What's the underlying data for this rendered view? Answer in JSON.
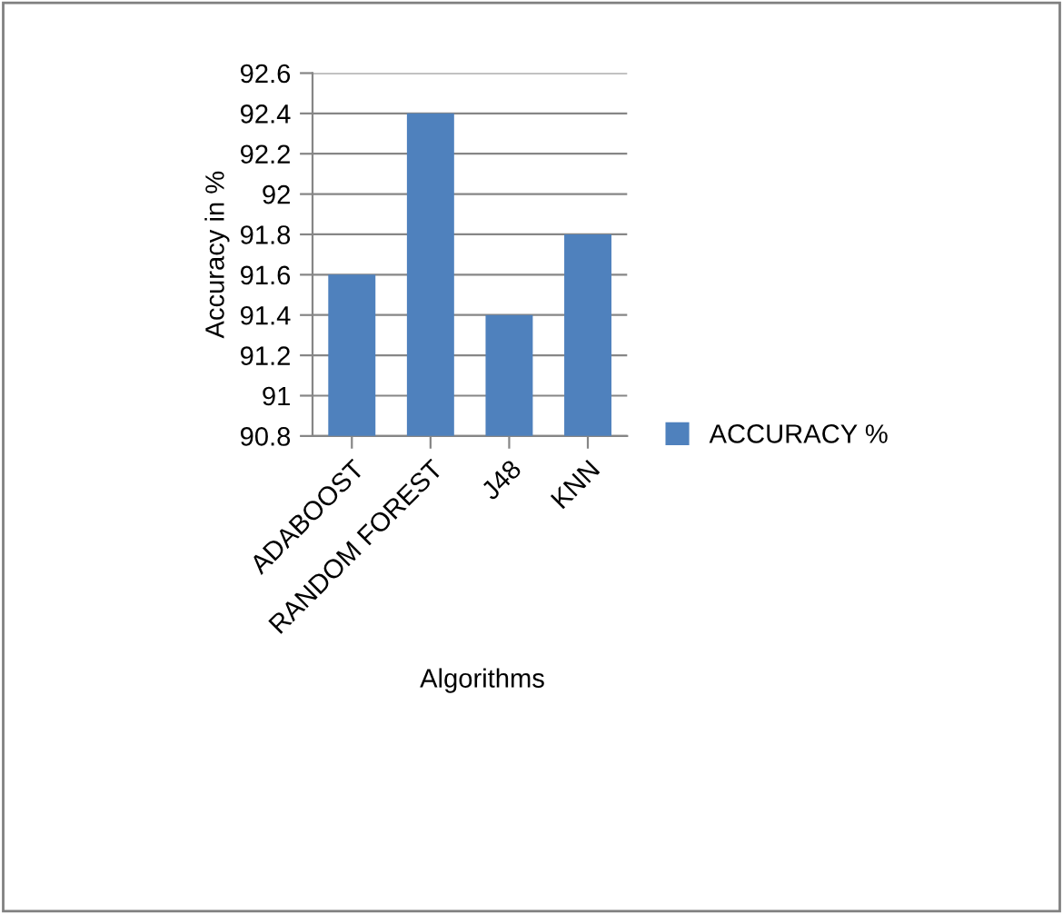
{
  "chart_data": {
    "type": "bar",
    "xlabel": "Algorithms",
    "ylabel": "Accuracy in %",
    "categories": [
      "ADABOOST",
      "RANDOM FOREST",
      "J48",
      "KNN"
    ],
    "series": [
      {
        "name": "ACCURACY %",
        "color": "#4f81bd",
        "values": [
          91.6,
          92.4,
          91.4,
          91.8
        ]
      }
    ],
    "ylim": [
      90.8,
      92.6
    ],
    "yticks": [
      90.8,
      91,
      91.2,
      91.4,
      91.6,
      91.8,
      92,
      92.2,
      92.4,
      92.6
    ],
    "grid": "y",
    "legend": "right"
  }
}
